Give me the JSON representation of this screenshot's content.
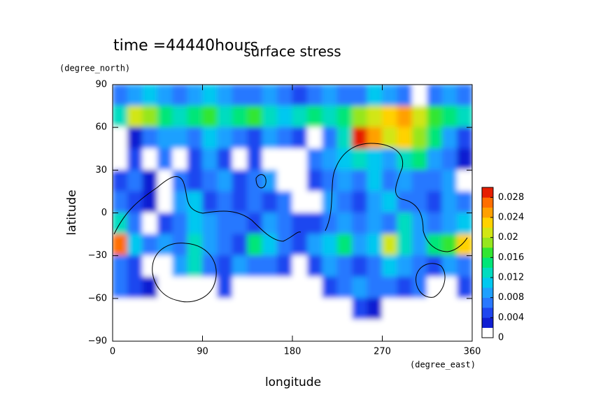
{
  "chart_data": {
    "type": "filled_contour",
    "title": "surface stress",
    "subtitle": "time =44440hours",
    "xlabel": "longitude",
    "ylabel": "latitude",
    "xunit": "(degree_east)",
    "yunit": "(degree_north)",
    "xlim": [
      0,
      360
    ],
    "ylim": [
      -90,
      90
    ],
    "xticks": [
      0,
      90,
      180,
      270,
      360
    ],
    "yticks": [
      {
        "value": -90,
        "label": "−90"
      },
      {
        "value": -60,
        "label": "−60"
      },
      {
        "value": -30,
        "label": "−30"
      },
      0,
      30,
      60,
      90
    ],
    "x": [
      7.5,
      22.5,
      37.5,
      52.5,
      67.5,
      82.5,
      97.5,
      112.5,
      127.5,
      142.5,
      157.5,
      172.5,
      187.5,
      202.5,
      217.5,
      232.5,
      247.5,
      262.5,
      277.5,
      292.5,
      307.5,
      322.5,
      337.5,
      352.5
    ],
    "y": [
      82.5,
      67.5,
      52.5,
      37.5,
      22.5,
      7.5,
      -7.5,
      -22.5,
      -37.5,
      -52.5,
      -67.5,
      -82.5
    ],
    "z": [
      [
        0.006,
        0.008,
        0.01,
        0.008,
        0.006,
        0.008,
        0.01,
        0.008,
        0.006,
        0.006,
        0.008,
        0.006,
        0.004,
        0.006,
        0.008,
        0.006,
        0.006,
        0.01,
        0.008,
        0.006,
        0,
        0.006,
        0.008,
        0.006
      ],
      [
        0.012,
        0.02,
        0.018,
        0.014,
        0.012,
        0.014,
        0.016,
        0.012,
        0.014,
        0.016,
        0.012,
        0.01,
        0.012,
        0.014,
        0.012,
        0.014,
        0.018,
        0.02,
        0.022,
        0.024,
        0.02,
        0.016,
        0.014,
        0.012
      ],
      [
        0,
        0.002,
        0.006,
        0.008,
        0.008,
        0.006,
        0.01,
        0.008,
        0.006,
        0.004,
        0.008,
        0.006,
        0.004,
        0,
        0.006,
        0.012,
        0.028,
        0.024,
        0.02,
        0.022,
        0.018,
        0.014,
        0.008,
        0.004
      ],
      [
        0,
        0.004,
        0,
        0.006,
        0,
        0.004,
        0.008,
        0.004,
        0,
        0.004,
        0,
        0,
        0,
        0.006,
        0.008,
        0.01,
        0.012,
        0.01,
        0.008,
        0.012,
        0.014,
        0.008,
        0.006,
        0.002
      ],
      [
        0.004,
        0.006,
        0.002,
        0,
        0.006,
        0.004,
        0.006,
        0.008,
        0.004,
        0.006,
        0.008,
        0,
        0,
        0.004,
        0.006,
        0.008,
        0.006,
        0.01,
        0.006,
        0.008,
        0.006,
        0.006,
        0.008,
        0
      ],
      [
        0.006,
        0.004,
        0.002,
        0,
        0.008,
        0.01,
        0.004,
        0.006,
        0.004,
        0.006,
        0.004,
        0.006,
        0,
        0,
        0.008,
        0.006,
        0.004,
        0.008,
        0.01,
        0.006,
        0.006,
        0.004,
        0.008,
        0.006
      ],
      [
        0.012,
        0.006,
        0,
        0.004,
        0.006,
        0.01,
        0.008,
        0.006,
        0.006,
        0.004,
        0.008,
        0.006,
        0.004,
        0.004,
        0.006,
        0.008,
        0.006,
        0.008,
        0.006,
        0.012,
        0.008,
        0.006,
        0.008,
        0.01
      ],
      [
        0.026,
        0.01,
        0.006,
        0.008,
        0.006,
        0.012,
        0.008,
        0.006,
        0.004,
        0.014,
        0.01,
        0.006,
        0.004,
        0.008,
        0.01,
        0.014,
        0.008,
        0.01,
        0.02,
        0.012,
        0.008,
        0.014,
        0.016,
        0.022
      ],
      [
        0.006,
        0.004,
        0,
        0,
        0.008,
        0.012,
        0.006,
        0.004,
        0.008,
        0.006,
        0.006,
        0.004,
        0,
        0.004,
        0.008,
        0.006,
        0.004,
        0.006,
        0.01,
        0.008,
        0.006,
        0.004,
        0.008,
        0.006
      ],
      [
        0.006,
        0.004,
        0.002,
        0,
        0,
        0,
        0,
        0.004,
        0,
        0,
        0,
        0,
        0,
        0,
        0.004,
        0.006,
        0.008,
        0.006,
        0.006,
        0.004,
        0.006,
        0,
        0,
        0.004
      ],
      [
        0,
        0,
        0,
        0,
        0,
        0,
        0,
        0,
        0,
        0,
        0,
        0,
        0,
        0,
        0,
        0,
        0.004,
        0.002,
        0,
        0,
        0,
        0,
        0,
        0
      ],
      [
        0,
        0,
        0,
        0,
        0,
        0,
        0,
        0,
        0,
        0,
        0,
        0,
        0,
        0,
        0,
        0,
        0,
        0,
        0,
        0,
        0,
        0,
        0,
        0
      ]
    ],
    "colorbar": {
      "lim": [
        0,
        0.03
      ],
      "ticks": [
        0,
        0.004,
        0.008,
        0.012,
        0.016,
        0.02,
        0.024,
        0.028
      ],
      "colors": [
        "#ffffff",
        "#0f1ed2",
        "#1e46f0",
        "#2878ff",
        "#1ea0ff",
        "#00c8f0",
        "#00dcc0",
        "#00e678",
        "#32e632",
        "#96e61e",
        "#d2e614",
        "#ffd200",
        "#ffa000",
        "#ff6e00",
        "#e61e00"
      ]
    }
  }
}
